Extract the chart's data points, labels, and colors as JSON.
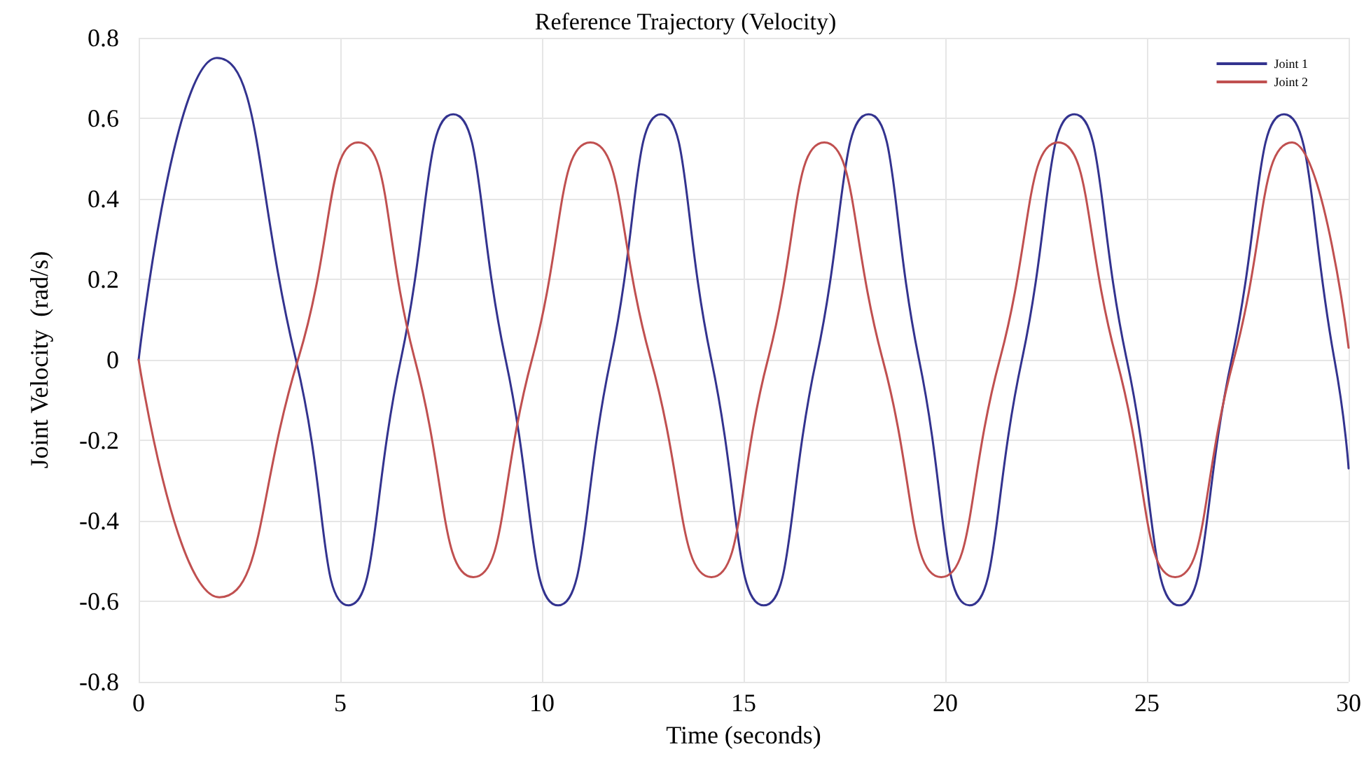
{
  "chart_data": {
    "type": "line",
    "title": "Reference Trajectory (Velocity)",
    "xlabel": "Time (seconds)",
    "ylabel": "Joint Velocity  (rad/s)",
    "series": [
      {
        "name": "Joint 1",
        "color": "#33338f",
        "x": [
          0,
          1.94,
          3.9,
          5.2,
          6.5,
          7.8,
          9.1,
          10.4,
          11.7,
          12.95,
          14.2,
          15.5,
          16.8,
          18.1,
          19.35,
          20.6,
          21.9,
          23.2,
          24.5,
          25.8,
          27.1,
          28.4,
          29.65,
          30
        ],
        "values": [
          0,
          0.75,
          0,
          -0.61,
          0,
          0.61,
          0,
          -0.61,
          0,
          0.61,
          0,
          -0.61,
          0,
          0.61,
          0,
          -0.61,
          0,
          0.61,
          0,
          -0.61,
          0,
          0.61,
          0,
          -0.27
        ]
      },
      {
        "name": "Joint 2",
        "color": "#c05050",
        "x": [
          0,
          2.0,
          3.95,
          5.45,
          6.85,
          8.3,
          9.75,
          11.2,
          12.7,
          14.2,
          15.6,
          17.0,
          18.45,
          19.9,
          21.35,
          22.8,
          24.25,
          25.7,
          27.15,
          28.6,
          30
        ],
        "values": [
          0,
          -0.59,
          0,
          0.54,
          0,
          -0.54,
          0,
          0.54,
          0,
          -0.54,
          0,
          0.54,
          0,
          -0.54,
          0,
          0.54,
          0,
          -0.54,
          0,
          0.54,
          0.03
        ]
      }
    ],
    "xlim": [
      0,
      30
    ],
    "xticks": [
      0,
      5,
      10,
      15,
      20,
      25,
      30
    ],
    "ylim": [
      -0.8,
      0.8
    ],
    "yticks": [
      -0.8,
      -0.6,
      -0.4,
      -0.2,
      0,
      0.2,
      0.4,
      0.6,
      0.8
    ],
    "grid": true,
    "legend": "top right",
    "marker": "none",
    "line_style": "solid"
  }
}
